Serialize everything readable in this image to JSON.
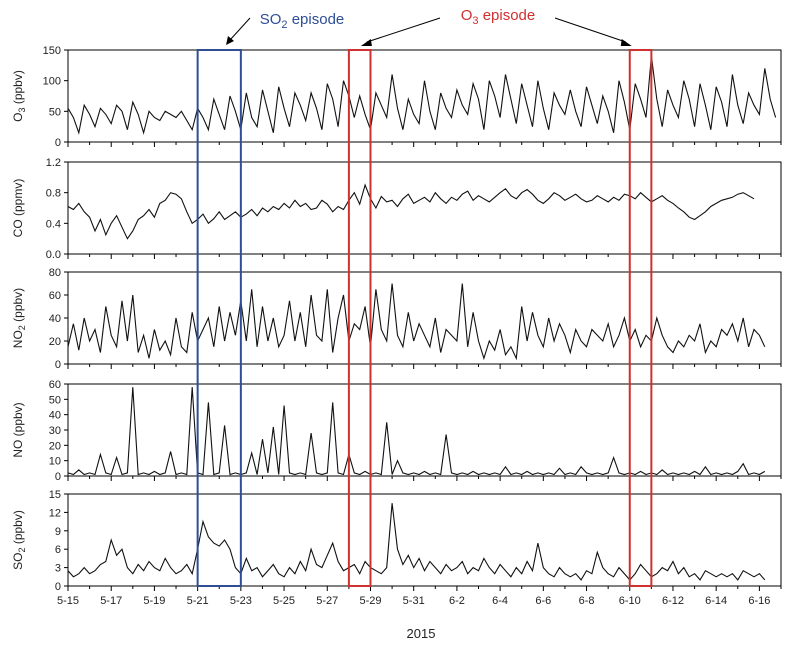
{
  "chart_data": {
    "type": "line",
    "title": "",
    "xlabel": "2015",
    "x_ticks": [
      "5-15",
      "5-17",
      "5-19",
      "5-21",
      "5-23",
      "5-25",
      "5-27",
      "5-29",
      "5-31",
      "6-2",
      "6-4",
      "6-6",
      "6-8",
      "6-10",
      "6-12",
      "6-14",
      "6-16"
    ],
    "x_range_days": [
      0,
      33
    ],
    "annotations": {
      "so2_episode": {
        "label_main": "SO",
        "label_sub": "2",
        "label_rest": " episode",
        "color": "#2f4e96",
        "start_day": 6,
        "end_day": 8
      },
      "o3_episode": {
        "label_main": "O",
        "label_sub": "3",
        "label_rest": " episode",
        "color": "#d03030",
        "windows": [
          [
            13,
            14
          ],
          [
            26,
            27
          ]
        ]
      }
    },
    "panels": [
      {
        "id": "o3",
        "ylabel_main": "O",
        "ylabel_sub": "3",
        "ylabel_rest": " (ppbv)",
        "ylim": [
          0,
          150
        ],
        "yticks": [
          "0",
          "50",
          "100",
          "150"
        ],
        "series": [
          {
            "step_hours": 6,
            "values": [
              55,
              40,
              15,
              60,
              45,
              25,
              55,
              45,
              30,
              60,
              50,
              20,
              65,
              45,
              15,
              50,
              40,
              35,
              50,
              45,
              40,
              50,
              35,
              20,
              55,
              40,
              20,
              70,
              45,
              20,
              75,
              50,
              20,
              80,
              40,
              25,
              85,
              50,
              15,
              90,
              55,
              25,
              80,
              60,
              35,
              80,
              55,
              20,
              95,
              70,
              25,
              100,
              75,
              40,
              75,
              45,
              20,
              80,
              60,
              40,
              110,
              55,
              20,
              70,
              45,
              30,
              100,
              50,
              20,
              80,
              55,
              40,
              85,
              60,
              45,
              95,
              70,
              20,
              100,
              75,
              40,
              110,
              70,
              30,
              95,
              60,
              25,
              100,
              55,
              20,
              80,
              60,
              45,
              85,
              50,
              25,
              90,
              60,
              30,
              75,
              50,
              15,
              100,
              65,
              20,
              95,
              70,
              40,
              140,
              70,
              25,
              85,
              60,
              40,
              100,
              70,
              25,
              95,
              60,
              20,
              90,
              65,
              25,
              110,
              60,
              30,
              80,
              60,
              45,
              120,
              70,
              40
            ]
          }
        ]
      },
      {
        "id": "co",
        "ylabel_main": "CO (ppmv)",
        "ylabel_sub": "",
        "ylabel_rest": "",
        "ylim": [
          0,
          1.2
        ],
        "yticks": [
          "0.0",
          "0.4",
          "0.8",
          "1.2"
        ],
        "series": [
          {
            "step_hours": 6,
            "values": [
              0.62,
              0.58,
              0.66,
              0.55,
              0.48,
              0.3,
              0.45,
              0.25,
              0.4,
              0.5,
              0.35,
              0.2,
              0.3,
              0.45,
              0.5,
              0.58,
              0.48,
              0.66,
              0.7,
              0.8,
              0.78,
              0.72,
              0.55,
              0.4,
              0.45,
              0.52,
              0.4,
              0.46,
              0.55,
              0.45,
              0.5,
              0.55,
              0.48,
              0.52,
              0.58,
              0.5,
              0.6,
              0.55,
              0.62,
              0.58,
              0.66,
              0.6,
              0.7,
              0.62,
              0.66,
              0.58,
              0.6,
              0.7,
              0.65,
              0.55,
              0.62,
              0.58,
              0.7,
              0.8,
              0.65,
              0.9,
              0.72,
              0.6,
              0.75,
              0.68,
              0.7,
              0.62,
              0.72,
              0.78,
              0.66,
              0.7,
              0.74,
              0.68,
              0.8,
              0.72,
              0.66,
              0.74,
              0.7,
              0.78,
              0.82,
              0.7,
              0.76,
              0.72,
              0.68,
              0.74,
              0.8,
              0.85,
              0.76,
              0.72,
              0.8,
              0.84,
              0.78,
              0.7,
              0.66,
              0.72,
              0.8,
              0.76,
              0.7,
              0.74,
              0.78,
              0.72,
              0.68,
              0.7,
              0.76,
              0.72,
              0.68,
              0.74,
              0.7,
              0.78,
              0.76,
              0.72,
              0.8,
              0.74,
              0.68,
              0.72,
              0.76,
              0.7,
              0.66,
              0.6,
              0.55,
              0.48,
              0.45,
              0.5,
              0.55,
              0.62,
              0.66,
              0.7,
              0.72,
              0.74,
              0.78,
              0.8,
              0.76,
              0.72
            ]
          }
        ]
      },
      {
        "id": "no2",
        "ylabel_main": "NO",
        "ylabel_sub": "2",
        "ylabel_rest": " (ppbv)",
        "ylim": [
          0,
          80
        ],
        "yticks": [
          "0",
          "20",
          "40",
          "60",
          "80"
        ],
        "series": [
          {
            "step_hours": 6,
            "values": [
              15,
              35,
              12,
              40,
              20,
              30,
              10,
              50,
              25,
              15,
              55,
              20,
              60,
              10,
              25,
              5,
              30,
              12,
              20,
              8,
              40,
              15,
              10,
              45,
              20,
              30,
              40,
              15,
              50,
              20,
              45,
              25,
              55,
              20,
              65,
              15,
              50,
              20,
              40,
              15,
              25,
              55,
              20,
              45,
              15,
              60,
              25,
              20,
              65,
              10,
              40,
              60,
              20,
              35,
              30,
              50,
              15,
              65,
              30,
              20,
              70,
              25,
              15,
              45,
              20,
              35,
              25,
              15,
              40,
              10,
              30,
              25,
              20,
              70,
              15,
              45,
              20,
              5,
              20,
              12,
              30,
              8,
              15,
              5,
              50,
              20,
              45,
              25,
              15,
              40,
              20,
              35,
              25,
              10,
              30,
              20,
              15,
              30,
              25,
              20,
              35,
              15,
              25,
              40,
              20,
              30,
              15,
              25,
              20,
              40,
              25,
              15,
              10,
              20,
              15,
              25,
              20,
              35,
              10,
              20,
              15,
              30,
              25,
              35,
              20,
              40,
              15,
              30,
              25,
              15
            ]
          }
        ]
      },
      {
        "id": "no",
        "ylabel_main": "NO (ppbv)",
        "ylabel_sub": "",
        "ylabel_rest": "",
        "ylim": [
          0,
          60
        ],
        "yticks": [
          "0",
          "10",
          "20",
          "30",
          "40",
          "50",
          "60"
        ],
        "series": [
          {
            "step_hours": 6,
            "values": [
              2,
              1,
              4,
              1,
              2,
              1,
              14,
              2,
              1,
              12,
              1,
              2,
              58,
              1,
              2,
              1,
              3,
              1,
              2,
              16,
              1,
              2,
              1,
              58,
              2,
              1,
              48,
              1,
              2,
              33,
              1,
              2,
              1,
              2,
              15,
              1,
              24,
              2,
              32,
              1,
              46,
              2,
              1,
              2,
              1,
              28,
              2,
              1,
              2,
              48,
              2,
              1,
              14,
              2,
              1,
              3,
              1,
              2,
              1,
              35,
              1,
              10,
              2,
              1,
              2,
              1,
              3,
              1,
              2,
              1,
              27,
              2,
              1,
              2,
              1,
              3,
              1,
              2,
              1,
              2,
              1,
              6,
              1,
              2,
              1,
              3,
              1,
              2,
              1,
              2,
              1,
              5,
              1,
              2,
              1,
              6,
              2,
              1,
              2,
              1,
              2,
              12,
              2,
              1,
              2,
              1,
              3,
              1,
              2,
              1,
              4,
              1,
              2,
              1,
              2,
              1,
              3,
              1,
              6,
              1,
              2,
              1,
              2,
              1,
              3,
              8,
              1,
              2,
              1,
              3
            ]
          }
        ]
      },
      {
        "id": "so2",
        "ylabel_main": "SO",
        "ylabel_sub": "2",
        "ylabel_rest": " (ppbv)",
        "ylim": [
          0,
          15
        ],
        "yticks": [
          "0",
          "3",
          "6",
          "9",
          "12",
          "15"
        ],
        "series": [
          {
            "step_hours": 6,
            "values": [
              2.5,
              1.5,
              2.0,
              3.0,
              2.0,
              2.5,
              3.5,
              4.0,
              7.5,
              5.0,
              6.0,
              3.0,
              2.0,
              3.5,
              2.5,
              4.0,
              3.0,
              2.5,
              4.5,
              3.0,
              2.0,
              2.5,
              3.5,
              2.0,
              6.0,
              10.5,
              8.0,
              7.0,
              6.5,
              7.5,
              6.0,
              3.0,
              2.0,
              4.5,
              2.5,
              3.0,
              1.5,
              2.5,
              3.5,
              2.0,
              1.5,
              3.0,
              2.0,
              4.0,
              2.5,
              6.0,
              3.5,
              3.0,
              5.0,
              7.0,
              4.0,
              2.5,
              3.0,
              3.5,
              2.0,
              4.0,
              3.0,
              2.5,
              2.0,
              3.0,
              13.5,
              6.0,
              3.5,
              5.0,
              3.0,
              4.5,
              2.5,
              4.0,
              3.0,
              2.0,
              3.5,
              2.5,
              3.0,
              4.0,
              2.0,
              3.0,
              2.5,
              4.5,
              3.0,
              2.0,
              3.5,
              2.5,
              1.5,
              3.0,
              2.0,
              4.0,
              2.5,
              7.0,
              3.0,
              2.0,
              1.5,
              3.0,
              2.0,
              1.5,
              2.0,
              1.0,
              2.5,
              2.0,
              5.5,
              3.0,
              2.0,
              1.5,
              3.0,
              2.0,
              1.0,
              2.0,
              3.5,
              2.5,
              1.5,
              2.0,
              3.0,
              2.5,
              4.0,
              2.0,
              3.0,
              1.5,
              2.0,
              1.0,
              2.5,
              2.0,
              1.5,
              2.0,
              1.5,
              2.0,
              1.0,
              2.5,
              2.0,
              1.5,
              2.0,
              1.0
            ]
          }
        ]
      }
    ],
    "line_color": "#111111",
    "grid": false,
    "legend": "none"
  }
}
